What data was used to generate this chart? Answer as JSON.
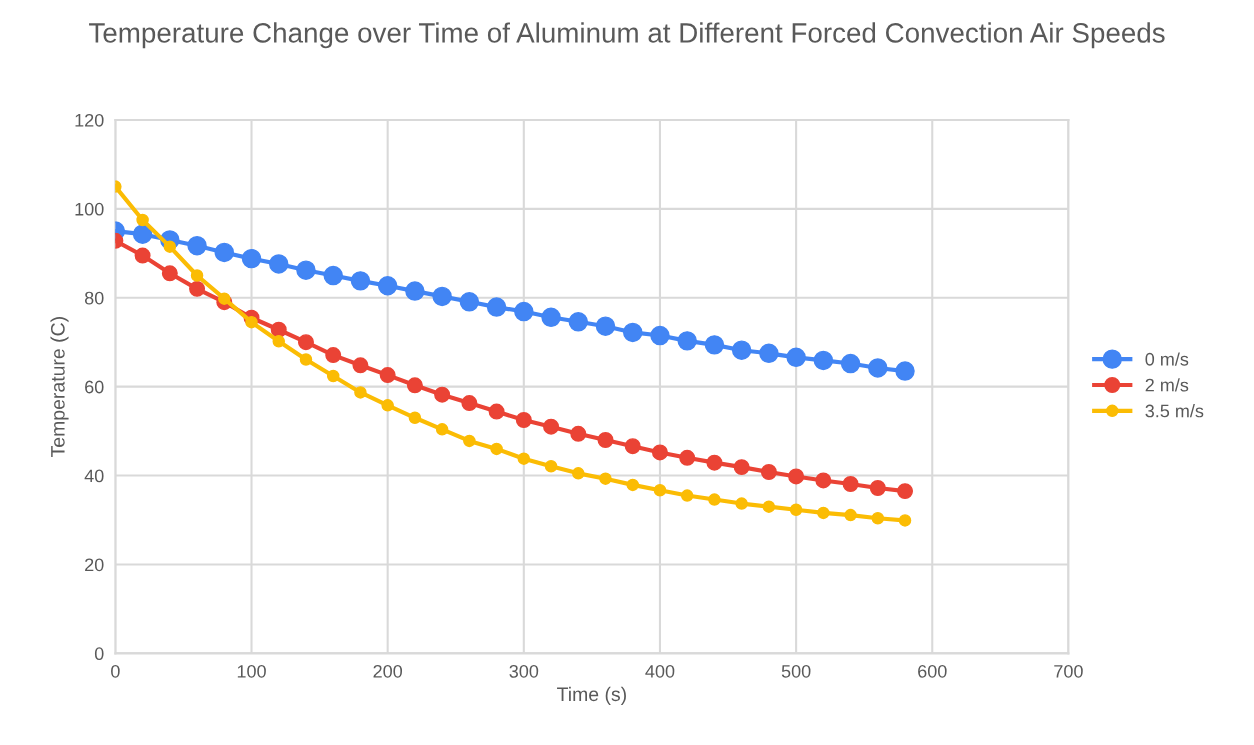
{
  "chart_data": {
    "type": "line",
    "title": "Temperature Change over Time of Aluminum at Different Forced Convection Air Speeds",
    "xlabel": "Time (s)",
    "ylabel": "Temperature (C)",
    "x": [
      0,
      20,
      40,
      60,
      80,
      100,
      120,
      140,
      160,
      180,
      200,
      220,
      240,
      260,
      280,
      300,
      320,
      340,
      360,
      380,
      400,
      420,
      440,
      460,
      480,
      500,
      520,
      540,
      560,
      580
    ],
    "series": [
      {
        "name": "0 m/s",
        "color": "#4285f4",
        "values": [
          95,
          94.3,
          93,
          91.7,
          90.2,
          88.8,
          87.6,
          86.2,
          85,
          83.8,
          82.7,
          81.5,
          80.3,
          79.1,
          77.9,
          76.9,
          75.6,
          74.6,
          73.6,
          72.2,
          71.5,
          70.3,
          69.4,
          68.2,
          67.5,
          66.6,
          65.9,
          65.2,
          64.2,
          63.5
        ]
      },
      {
        "name": "2 m/s",
        "color": "#ea4335",
        "values": [
          92.8,
          89.5,
          85.5,
          82,
          79,
          75.5,
          72.8,
          70,
          67.1,
          64.8,
          62.6,
          60.3,
          58.2,
          56.3,
          54.4,
          52.5,
          51,
          49.4,
          48,
          46.6,
          45.2,
          44,
          42.9,
          41.9,
          40.8,
          39.8,
          38.9,
          38.1,
          37.2,
          36.5
        ]
      },
      {
        "name": "3.5 m/s",
        "color": "#fbbc04",
        "values": [
          105,
          97.5,
          91.5,
          85,
          79.8,
          74.5,
          70.2,
          66.1,
          62.4,
          58.7,
          55.8,
          53,
          50.4,
          47.8,
          46,
          43.8,
          42.1,
          40.5,
          39.3,
          37.9,
          36.7,
          35.5,
          34.6,
          33.7,
          33,
          32.3,
          31.6,
          31.1,
          30.4,
          29.9
        ]
      }
    ],
    "xlim": [
      0,
      700
    ],
    "xticks": [
      0,
      100,
      200,
      300,
      400,
      500,
      600,
      700
    ],
    "ylim": [
      0,
      120
    ],
    "yticks": [
      0,
      20,
      40,
      60,
      80,
      100,
      120
    ],
    "grid": true,
    "legend": "right",
    "marker": "circle",
    "line_style": "solid"
  }
}
